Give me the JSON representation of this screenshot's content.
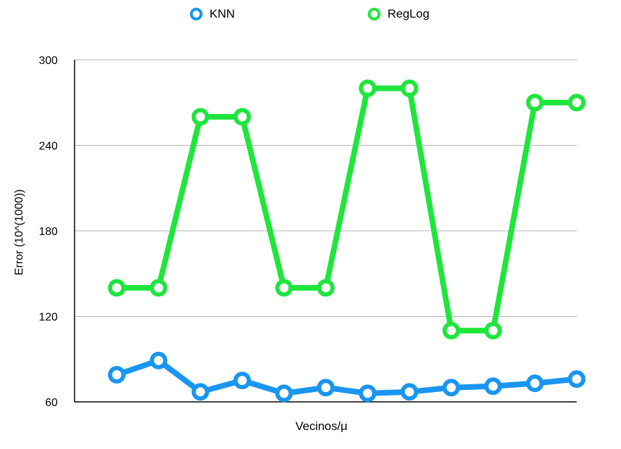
{
  "chart_data": {
    "type": "line",
    "title": "",
    "xlabel": "Vecinos/μ",
    "ylabel": "Error (10^(1000))",
    "ylim": [
      60,
      300
    ],
    "yticks": [
      60,
      120,
      180,
      240,
      300
    ],
    "grid": true,
    "legend_position": "top",
    "x": [
      1,
      2,
      3,
      4,
      5,
      6,
      7,
      8,
      9,
      10,
      11,
      12
    ],
    "series": [
      {
        "name": "KNN",
        "color": "#1a96f0",
        "values": [
          79,
          89,
          67,
          75,
          66,
          70,
          66,
          67,
          70,
          71,
          73,
          76
        ]
      },
      {
        "name": "RegLog",
        "color": "#1ee63c",
        "values": [
          140,
          140,
          260,
          260,
          140,
          140,
          280,
          280,
          110,
          110,
          270,
          270
        ]
      }
    ]
  }
}
